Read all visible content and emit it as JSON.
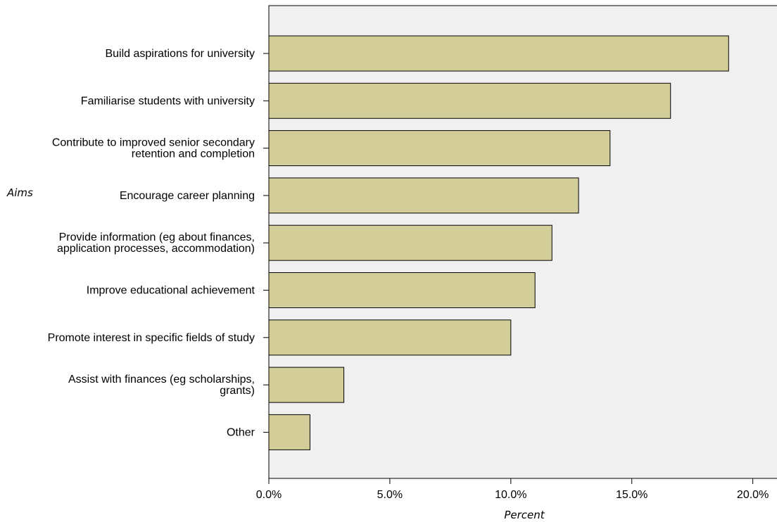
{
  "chart_data": {
    "type": "bar",
    "orientation": "horizontal",
    "categories": [
      [
        "Build aspirations for university"
      ],
      [
        "Familiarise students with university"
      ],
      [
        "Contribute to improved senior secondary",
        "retention and completion "
      ],
      [
        "Encourage career planning"
      ],
      [
        "Provide information (eg about finances,",
        "application processes, accommodation)"
      ],
      [
        "Improve educational achievement"
      ],
      [
        "Promote interest in specific fields of study"
      ],
      [
        "Assist with finances (eg scholarships,",
        "grants)"
      ],
      [
        "Other "
      ]
    ],
    "values": [
      19.0,
      16.6,
      14.1,
      12.8,
      11.7,
      11.0,
      10.0,
      3.1,
      1.7
    ],
    "xlabel": "Percent",
    "ylabel": "Aims",
    "xlim": [
      0,
      21
    ],
    "xticks": [
      0,
      5,
      10,
      15,
      20
    ],
    "xtick_labels": [
      "0.0%",
      "5.0%",
      "10.0%",
      "15.0%",
      "20.0%"
    ],
    "grid": false,
    "colors": {
      "bar_fill": "#d3cd9a",
      "bar_stroke": "#000000",
      "plot_background": "#f0f0f0"
    }
  }
}
